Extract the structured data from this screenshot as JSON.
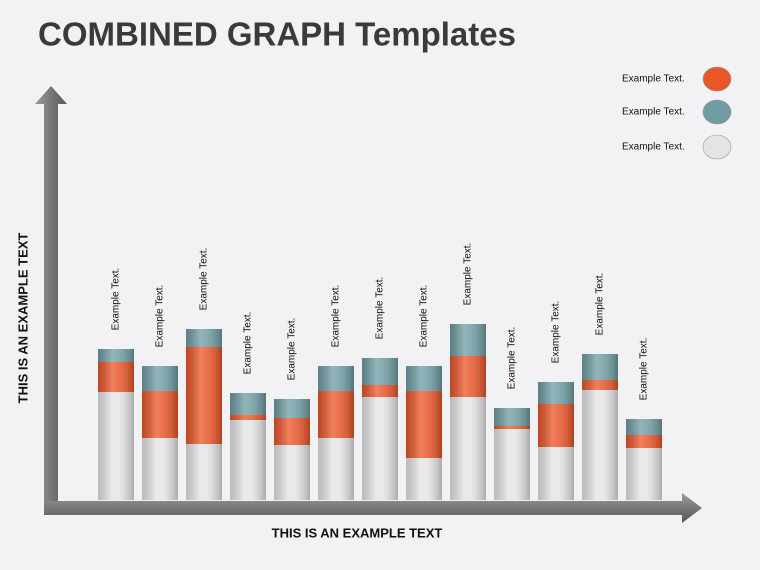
{
  "chart_data": {
    "type": "stacked-bar",
    "title": "COMBINED GRAPH Templates",
    "x_label": "THIS IS AN EXAMPLE TEXT",
    "y_label": "THIS IS AN EXAMPLE TEXT",
    "categories": [
      "Example Text.",
      "Example Text.",
      "Example Text.",
      "Example Text.",
      "Example Text.",
      "Example Text.",
      "Example Text.",
      "Example Text.",
      "Example Text.",
      "Example Text.",
      "Example Text.",
      "Example Text.",
      "Example Text."
    ],
    "series": [
      {
        "name": "Example Text.",
        "color": "#e8562a",
        "values": [
          15,
          23.5,
          48.5,
          2.5,
          13.5,
          23.5,
          6,
          33.5,
          20.5,
          1.5,
          21.5,
          5,
          6.5
        ]
      },
      {
        "name": "Example Text.",
        "color": "#6f9ca3",
        "values": [
          6.5,
          12.5,
          9,
          11,
          9.5,
          12.5,
          13.5,
          12.5,
          16,
          9,
          11,
          13,
          8
        ]
      },
      {
        "name": "Example Text.",
        "color": "#e4e3e5",
        "values": [
          54,
          31,
          28,
          40,
          27.5,
          31,
          51.5,
          21,
          51.5,
          35.5,
          26.5,
          55,
          26
        ]
      }
    ],
    "ylim": [
      0,
      200
    ]
  }
}
